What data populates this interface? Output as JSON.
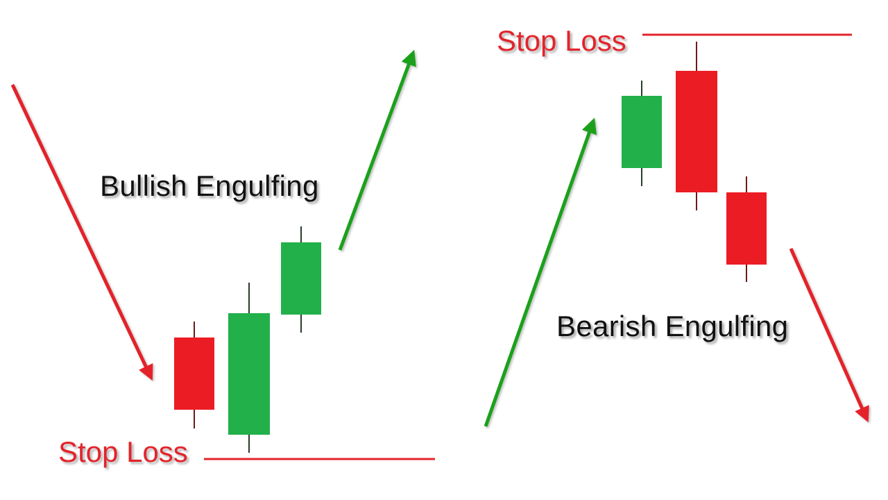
{
  "colors": {
    "bull": "#22b04b",
    "bear": "#ec1c24",
    "wick": "#6b1a1a",
    "stop_line": "#e3242b",
    "up_arrow": "#1ea01e",
    "down_arrow": "#e3242b",
    "background": "#ffffff"
  },
  "bullish": {
    "title": "Bullish Engulfing",
    "stop_label": "Stop Loss",
    "candles": [
      {
        "direction": "bearish"
      },
      {
        "direction": "bullish"
      },
      {
        "direction": "bullish"
      }
    ],
    "trend_in": "down",
    "trend_out": "up"
  },
  "bearish": {
    "title": "Bearish Engulfing",
    "stop_label": "Stop Loss",
    "candles": [
      {
        "direction": "bullish"
      },
      {
        "direction": "bearish"
      },
      {
        "direction": "bearish"
      }
    ],
    "trend_in": "up",
    "trend_out": "down"
  }
}
